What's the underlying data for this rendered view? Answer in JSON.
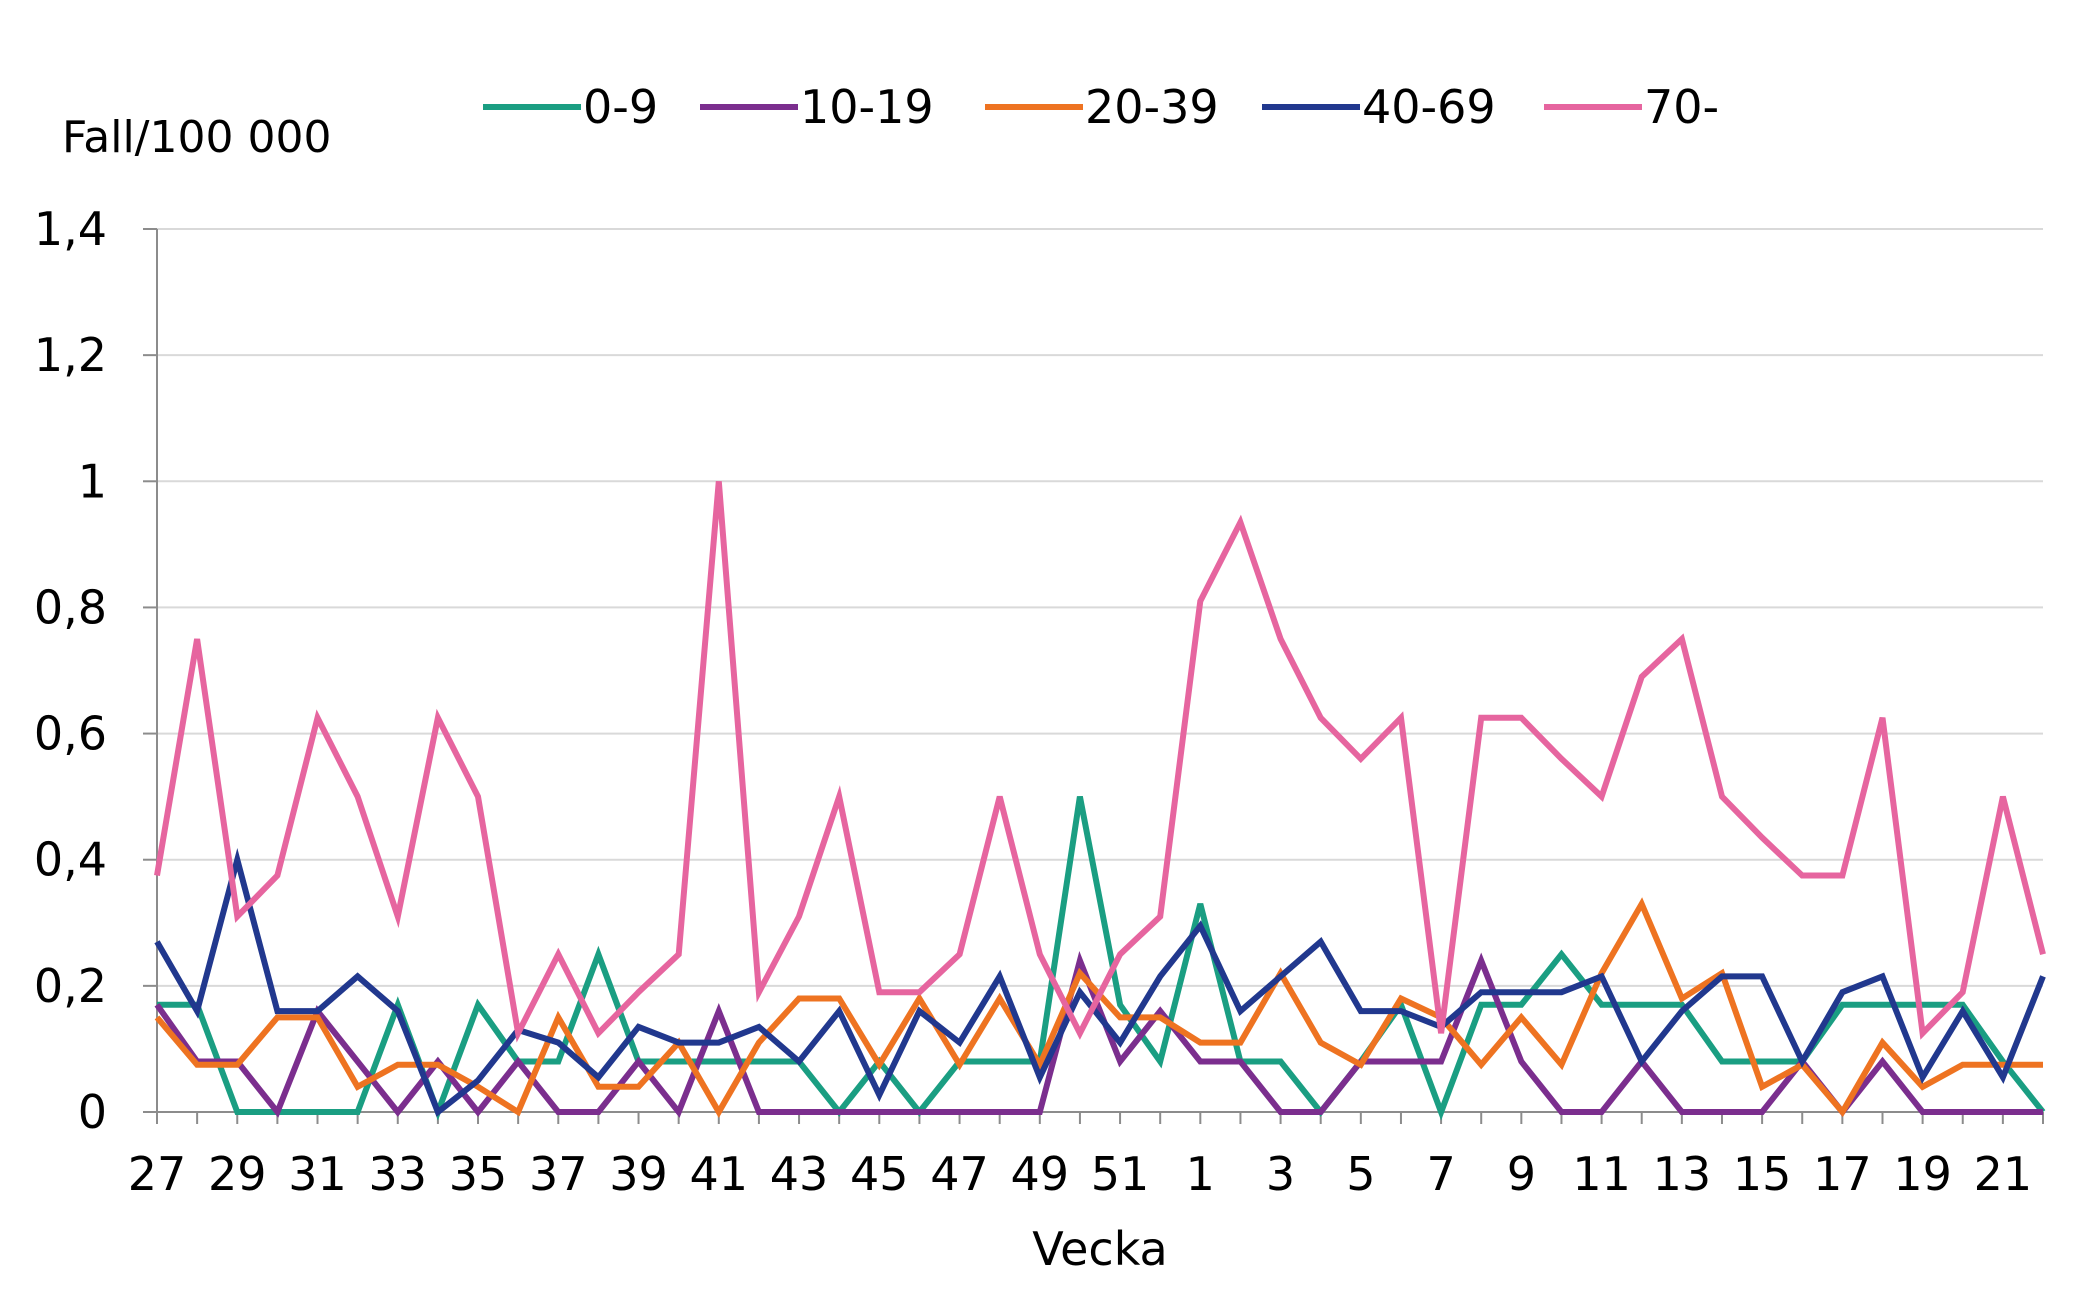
{
  "chart_data": {
    "type": "line",
    "ylabel": "Fall/100 000",
    "xlabel": "Vecka",
    "ylim": [
      0,
      1.4
    ],
    "yticks": [
      {
        "value": 0,
        "label": "0"
      },
      {
        "value": 0.2,
        "label": "0,2"
      },
      {
        "value": 0.4,
        "label": "0,4"
      },
      {
        "value": 0.6,
        "label": "0,6"
      },
      {
        "value": 0.8,
        "label": "0,8"
      },
      {
        "value": 1,
        "label": "1"
      },
      {
        "value": 1.2,
        "label": "1,2"
      },
      {
        "value": 1.4,
        "label": "1,4"
      }
    ],
    "grid": "horizontal",
    "legend_position": "top",
    "x": [
      "27",
      "28",
      "29",
      "30",
      "31",
      "32",
      "33",
      "34",
      "35",
      "36",
      "37",
      "38",
      "39",
      "40",
      "41",
      "42",
      "43",
      "44",
      "45",
      "46",
      "47",
      "48",
      "49",
      "50",
      "51",
      "52",
      "1",
      "2",
      "3",
      "4",
      "5",
      "6",
      "7",
      "8",
      "9",
      "10",
      "11",
      "12",
      "13",
      "14",
      "15",
      "16",
      "17",
      "18",
      "19",
      "20",
      "21",
      "22"
    ],
    "xtick_labels": [
      "27",
      "29",
      "31",
      "33",
      "35",
      "37",
      "39",
      "41",
      "43",
      "45",
      "47",
      "49",
      "51",
      "1",
      "3",
      "5",
      "7",
      "9",
      "11",
      "13",
      "15",
      "17",
      "19",
      "21"
    ],
    "series": [
      {
        "name": "0-9",
        "color": "#1a9e82",
        "values": [
          0.17,
          0.17,
          0,
          0,
          0,
          0,
          0.17,
          0,
          0.17,
          0.08,
          0.08,
          0.25,
          0.08,
          0.08,
          0.08,
          0.08,
          0.08,
          0,
          0.08,
          0,
          0.08,
          0.08,
          0.08,
          0.5,
          0.17,
          0.08,
          0.33,
          0.08,
          0.08,
          0,
          0.08,
          0.17,
          0,
          0.17,
          0.17,
          0.25,
          0.17,
          0.17,
          0.17,
          0.08,
          0.08,
          0.08,
          0.17,
          0.17,
          0.17,
          0.17,
          0.08,
          0
        ]
      },
      {
        "name": "10-19",
        "color": "#7b2e8e",
        "values": [
          0.17,
          0.08,
          0.08,
          0,
          0.16,
          0.08,
          0,
          0.08,
          0,
          0.08,
          0,
          0,
          0.08,
          0,
          0.16,
          0,
          0,
          0,
          0,
          0,
          0,
          0,
          0,
          0.24,
          0.08,
          0.16,
          0.08,
          0.08,
          0,
          0,
          0.08,
          0.08,
          0.08,
          0.24,
          0.08,
          0,
          0,
          0.08,
          0,
          0,
          0,
          0.08,
          0,
          0.08,
          0,
          0,
          0,
          0
        ]
      },
      {
        "name": "20-39",
        "color": "#ee7321",
        "values": [
          0.15,
          0.075,
          0.075,
          0.15,
          0.15,
          0.04,
          0.075,
          0.075,
          0.04,
          0,
          0.15,
          0.04,
          0.04,
          0.11,
          0,
          0.11,
          0.18,
          0.18,
          0.075,
          0.18,
          0.075,
          0.18,
          0.075,
          0.22,
          0.15,
          0.15,
          0.11,
          0.11,
          0.22,
          0.11,
          0.075,
          0.18,
          0.15,
          0.075,
          0.15,
          0.075,
          0.22,
          0.33,
          0.18,
          0.22,
          0.04,
          0.075,
          0,
          0.11,
          0.04,
          0.075,
          0.075,
          0.075
        ]
      },
      {
        "name": "40-69",
        "color": "#21388e",
        "values": [
          0.27,
          0.16,
          0.4,
          0.16,
          0.16,
          0.215,
          0.16,
          0,
          0.05,
          0.13,
          0.11,
          0.055,
          0.135,
          0.11,
          0.11,
          0.135,
          0.08,
          0.16,
          0.027,
          0.16,
          0.11,
          0.215,
          0.055,
          0.19,
          0.11,
          0.215,
          0.295,
          0.16,
          0.215,
          0.27,
          0.16,
          0.16,
          0.135,
          0.19,
          0.19,
          0.19,
          0.215,
          0.08,
          0.16,
          0.215,
          0.215,
          0.08,
          0.19,
          0.215,
          0.055,
          0.16,
          0.055,
          0.215
        ]
      },
      {
        "name": "70-",
        "color": "#e6659f",
        "values": [
          0.375,
          0.75,
          0.31,
          0.375,
          0.625,
          0.5,
          0.31,
          0.625,
          0.5,
          0.125,
          0.25,
          0.125,
          0.19,
          0.25,
          1.0,
          0.19,
          0.31,
          0.5,
          0.19,
          0.19,
          0.25,
          0.5,
          0.25,
          0.125,
          0.25,
          0.31,
          0.81,
          0.935,
          0.75,
          0.625,
          0.56,
          0.625,
          0.125,
          0.625,
          0.625,
          0.56,
          0.5,
          0.69,
          0.75,
          0.5,
          0.435,
          0.375,
          0.375,
          0.625,
          0.125,
          0.19,
          0.5,
          0.25
        ]
      }
    ]
  }
}
